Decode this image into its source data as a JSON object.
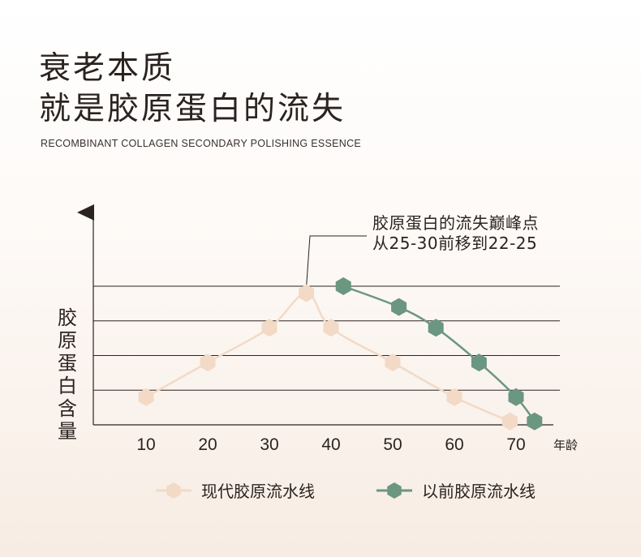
{
  "header": {
    "title_line1": "衰老本质",
    "title_line2": "就是胶原蛋白的流失",
    "subtitle": "RECOMBINANT COLLAGEN SECONDARY POLISHING ESSENCE"
  },
  "chart_data": {
    "type": "line",
    "ylabel": "胶原蛋白含量",
    "xlabel": "年龄",
    "x_ticks": [
      10,
      20,
      30,
      40,
      50,
      60,
      70
    ],
    "xlim": [
      5,
      75
    ],
    "ylim": [
      0,
      4
    ],
    "grid": true,
    "legend_position": "bottom",
    "annotation": {
      "line1": "胶原蛋白的流失巅峰点",
      "line2": "从25-30前移到22-25"
    },
    "series": [
      {
        "name": "现代胶原流水线",
        "color": "#f2dac6",
        "points": [
          [
            10,
            0.8
          ],
          [
            20,
            1.8
          ],
          [
            30,
            2.8
          ],
          [
            36,
            3.8
          ],
          [
            40,
            2.8
          ],
          [
            50,
            1.8
          ],
          [
            60,
            0.8
          ],
          [
            69,
            0.1
          ]
        ]
      },
      {
        "name": "以前胶原流水线",
        "color": "#6b9680",
        "points": [
          [
            42,
            4.0
          ],
          [
            51,
            3.4
          ],
          [
            57,
            2.8
          ],
          [
            64,
            1.8
          ],
          [
            70,
            0.8
          ],
          [
            73,
            0.1
          ]
        ]
      }
    ]
  }
}
